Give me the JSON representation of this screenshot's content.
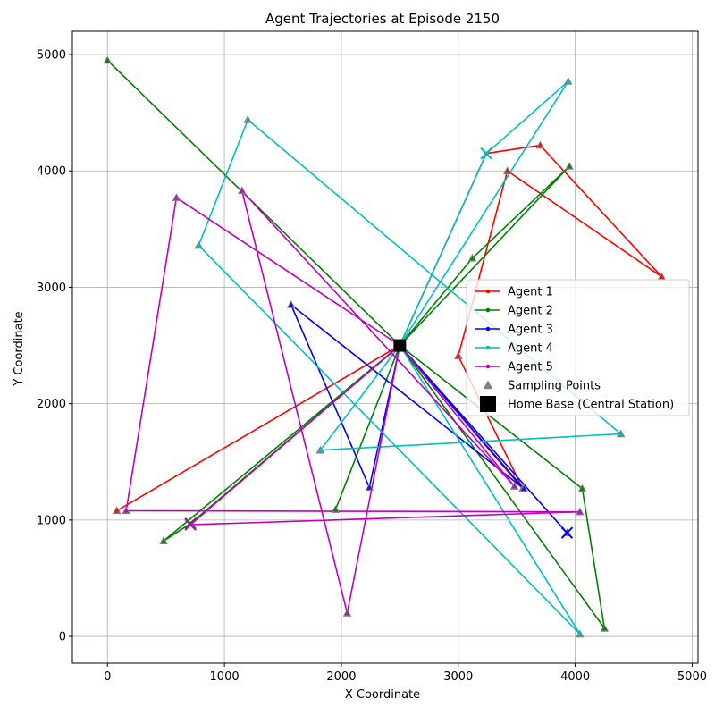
{
  "chart_data": {
    "type": "line",
    "title": "Agent Trajectories at Episode 2150",
    "xlabel": "X Coordinate",
    "ylabel": "Y Coordinate",
    "xlim": [
      -300,
      5050
    ],
    "ylim": [
      -230,
      5200
    ],
    "xticks": [
      0,
      1000,
      2000,
      3000,
      4000,
      5000
    ],
    "yticks": [
      0,
      1000,
      2000,
      3000,
      4000,
      5000
    ],
    "grid": true,
    "legend_position": "center-right",
    "home_base": {
      "name": "Home Base (Central Station)",
      "x": 2500,
      "y": 2500,
      "color": "#000000"
    },
    "sampling_points_label": "Sampling Points",
    "sampling_points_color": "#808080",
    "series": [
      {
        "name": "Agent 1",
        "color": "#ff0000",
        "points": [
          [
            2500,
            2500
          ],
          [
            3550,
            1270
          ],
          [
            3000,
            2410
          ],
          [
            3420,
            4000
          ],
          [
            4740,
            3090
          ],
          [
            3700,
            4220
          ],
          [
            3240,
            4150
          ],
          [
            2500,
            2500
          ],
          [
            80,
            1080
          ],
          [
            2500,
            2500
          ]
        ],
        "sampling": [
          [
            3550,
            1270
          ],
          [
            3000,
            2410
          ],
          [
            3420,
            4000
          ],
          [
            4740,
            3090
          ],
          [
            3700,
            4220
          ],
          [
            80,
            1080
          ]
        ],
        "x_marker": [
          3240,
          4150
        ]
      },
      {
        "name": "Agent 2",
        "color": "#008000",
        "points": [
          [
            2500,
            2500
          ],
          [
            3950,
            4040
          ],
          [
            3120,
            3250
          ],
          [
            2500,
            2500
          ],
          [
            4060,
            1270
          ],
          [
            4250,
            70
          ],
          [
            2500,
            2500
          ],
          [
            0,
            4950
          ],
          [
            2500,
            2500
          ],
          [
            480,
            820
          ],
          [
            710,
            970
          ],
          [
            2500,
            2500
          ],
          [
            1950,
            1090
          ],
          [
            2500,
            2500
          ]
        ],
        "sampling": [
          [
            3950,
            4040
          ],
          [
            3120,
            3250
          ],
          [
            4060,
            1270
          ],
          [
            4250,
            70
          ],
          [
            0,
            4950
          ],
          [
            480,
            820
          ],
          [
            1950,
            1090
          ]
        ],
        "x_marker": [
          710,
          970
        ]
      },
      {
        "name": "Agent 3",
        "color": "#0000ff",
        "points": [
          [
            2500,
            2500
          ],
          [
            3930,
            890
          ],
          [
            2500,
            2500
          ],
          [
            2240,
            1280
          ],
          [
            1570,
            2850
          ],
          [
            3560,
            1270
          ],
          [
            2500,
            2500
          ]
        ],
        "sampling": [
          [
            3930,
            890
          ],
          [
            2240,
            1280
          ],
          [
            1570,
            2850
          ],
          [
            3560,
            1270
          ]
        ],
        "x_marker": [
          3930,
          890
        ]
      },
      {
        "name": "Agent 4",
        "color": "#00bfbf",
        "points": [
          [
            2500,
            2500
          ],
          [
            3940,
            4770
          ],
          [
            3240,
            4150
          ],
          [
            2500,
            2500
          ],
          [
            1820,
            1600
          ],
          [
            4390,
            1740
          ],
          [
            1200,
            4440
          ],
          [
            780,
            3360
          ],
          [
            4040,
            20
          ],
          [
            2500,
            2500
          ]
        ],
        "sampling": [
          [
            3940,
            4770
          ],
          [
            1820,
            1600
          ],
          [
            4390,
            1740
          ],
          [
            1200,
            4440
          ],
          [
            780,
            3360
          ],
          [
            4040,
            20
          ]
        ],
        "x_marker": [
          3240,
          4150
        ]
      },
      {
        "name": "Agent 5",
        "color": "#bf00bf",
        "points": [
          [
            2500,
            2500
          ],
          [
            2050,
            200
          ],
          [
            1150,
            3830
          ],
          [
            3480,
            1290
          ],
          [
            2500,
            2500
          ],
          [
            590,
            3770
          ],
          [
            160,
            1080
          ],
          [
            4040,
            1070
          ],
          [
            710,
            960
          ],
          [
            2500,
            2500
          ]
        ],
        "sampling": [
          [
            2050,
            200
          ],
          [
            1150,
            3830
          ],
          [
            3480,
            1290
          ],
          [
            590,
            3770
          ],
          [
            160,
            1080
          ],
          [
            4040,
            1070
          ]
        ],
        "x_marker": [
          710,
          960
        ]
      }
    ]
  }
}
